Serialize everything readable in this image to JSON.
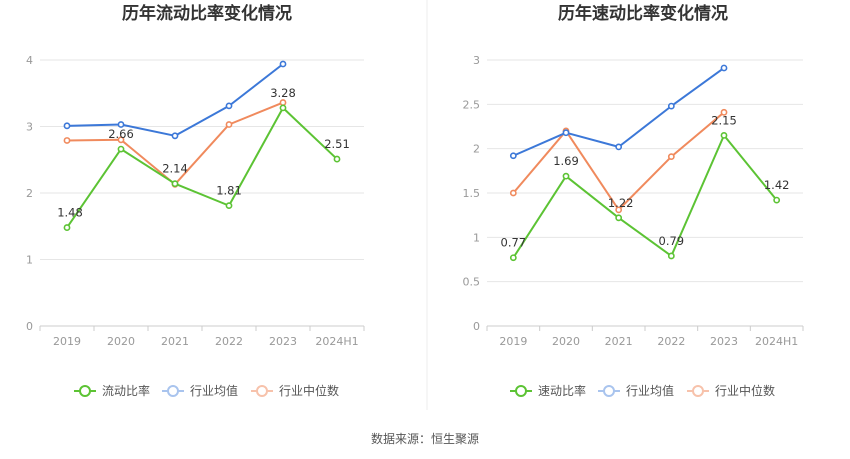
{
  "chart_data": [
    {
      "type": "line",
      "title": "历年流动比率变化情况",
      "categories": [
        "2019",
        "2020",
        "2021",
        "2022",
        "2023",
        "2024H1"
      ],
      "ylim": [
        0,
        4
      ],
      "yticks": [
        0,
        1,
        2,
        3,
        4
      ],
      "grid": true,
      "legend_position": "bottom",
      "series": [
        {
          "name": "流动比率",
          "color": "#5cc334",
          "values": [
            1.48,
            2.66,
            2.14,
            1.81,
            3.28,
            2.51
          ],
          "labels": [
            "1.48",
            "2.66",
            "2.14",
            "1.81",
            "3.28",
            "2.51"
          ]
        },
        {
          "name": "行业均值",
          "color": "#3c78d8",
          "values": [
            3.01,
            3.03,
            2.86,
            3.31,
            3.94,
            null
          ]
        },
        {
          "name": "行业中位数",
          "color": "#f08a5d",
          "values": [
            2.79,
            2.8,
            2.13,
            3.03,
            3.36,
            null
          ]
        }
      ]
    },
    {
      "type": "line",
      "title": "历年速动比率变化情况",
      "categories": [
        "2019",
        "2020",
        "2021",
        "2022",
        "2023",
        "2024H1"
      ],
      "ylim": [
        0,
        3
      ],
      "yticks": [
        0,
        0.5,
        1,
        1.5,
        2,
        2.5,
        3
      ],
      "grid": true,
      "legend_position": "bottom",
      "series": [
        {
          "name": "速动比率",
          "color": "#5cc334",
          "values": [
            0.77,
            1.69,
            1.22,
            0.79,
            2.15,
            1.42
          ],
          "labels": [
            "0.77",
            "1.69",
            "1.22",
            "0.79",
            "2.15",
            "1.42"
          ]
        },
        {
          "name": "行业均值",
          "color": "#3c78d8",
          "values": [
            1.92,
            2.18,
            2.02,
            2.48,
            2.91,
            null
          ]
        },
        {
          "name": "行业中位数",
          "color": "#f08a5d",
          "values": [
            1.5,
            2.2,
            1.31,
            1.91,
            2.41,
            null
          ]
        }
      ]
    }
  ],
  "footer": {
    "source": "数据来源：恒生聚源"
  }
}
